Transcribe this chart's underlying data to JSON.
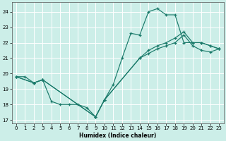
{
  "title": "",
  "xlabel": "Humidex (Indice chaleur)",
  "bg_color": "#cceee8",
  "line_color": "#1a7a6a",
  "grid_color": "#ffffff",
  "xlim": [
    -0.5,
    23.5
  ],
  "ylim": [
    16.8,
    24.6
  ],
  "xticks": [
    0,
    1,
    2,
    3,
    4,
    5,
    6,
    7,
    8,
    9,
    10,
    11,
    12,
    13,
    14,
    15,
    16,
    17,
    18,
    19,
    20,
    21,
    22,
    23
  ],
  "yticks": [
    17,
    18,
    19,
    20,
    21,
    22,
    23,
    24
  ],
  "s1_x": [
    0,
    1,
    2,
    3,
    4,
    5,
    6,
    7,
    8,
    9,
    10,
    11,
    12,
    13,
    14,
    15,
    16,
    17,
    18,
    19,
    20,
    21,
    22,
    23
  ],
  "s1_y": [
    19.8,
    19.8,
    19.4,
    19.6,
    18.2,
    18.0,
    18.0,
    18.0,
    17.8,
    17.2,
    18.3,
    19.3,
    21.0,
    22.6,
    22.5,
    24.0,
    24.2,
    23.8,
    23.8,
    22.0,
    22.0,
    22.0,
    21.8,
    21.6
  ],
  "s2_x": [
    0,
    2,
    3,
    9,
    10,
    14,
    15,
    16,
    17,
    18,
    19,
    20,
    21,
    22,
    23
  ],
  "s2_y": [
    19.8,
    19.4,
    19.6,
    17.2,
    18.3,
    21.0,
    21.5,
    21.8,
    22.0,
    22.3,
    22.7,
    22.0,
    22.0,
    21.8,
    21.6
  ],
  "s3_x": [
    0,
    2,
    3,
    9,
    10,
    14,
    15,
    16,
    17,
    18,
    19,
    20,
    21,
    22,
    23
  ],
  "s3_y": [
    19.8,
    19.4,
    19.6,
    17.2,
    18.3,
    21.0,
    21.3,
    21.6,
    21.8,
    22.0,
    22.5,
    21.8,
    21.5,
    21.4,
    21.6
  ]
}
